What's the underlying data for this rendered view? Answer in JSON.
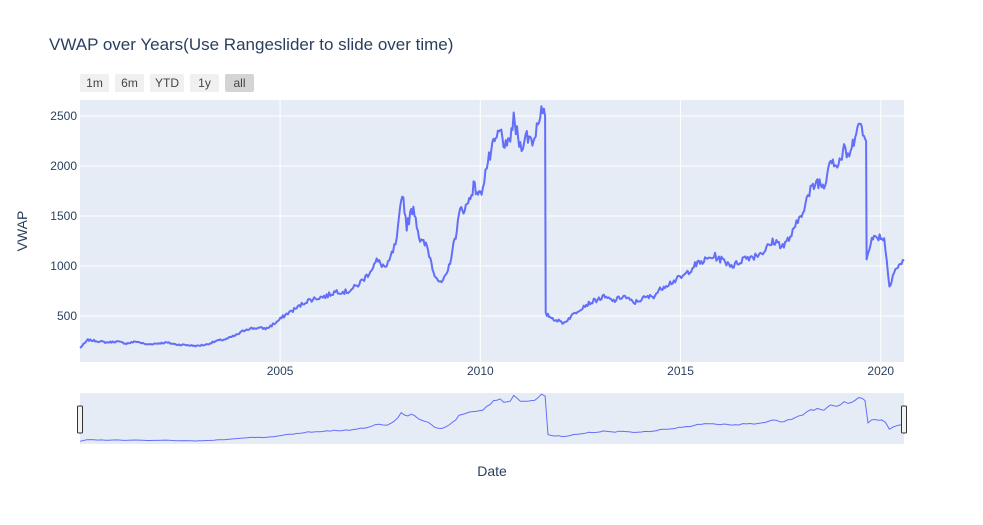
{
  "chart_data": {
    "type": "line",
    "title": "VWAP over Years(Use Rangeslider to slide over time)",
    "xlabel": "Date",
    "ylabel": "VWAP",
    "x_ticks": [
      "2005",
      "2010",
      "2015",
      "2020"
    ],
    "y_ticks": [
      "500",
      "1000",
      "1500",
      "2000",
      "2500"
    ],
    "xlim": [
      "2000-01-03",
      "2020-07-31"
    ],
    "ylim": [
      40,
      2660
    ],
    "grid": true,
    "rangeslider": true,
    "line_color": "#636efa",
    "plot_bg": "#e5ecf6",
    "range_buttons": [
      {
        "label": "1m",
        "active": false
      },
      {
        "label": "6m",
        "active": false
      },
      {
        "label": "YTD",
        "active": false
      },
      {
        "label": "1y",
        "active": false
      },
      {
        "label": "all",
        "active": true
      }
    ],
    "series": [
      {
        "x": [
          "2000-01-03",
          "2000-03-15",
          "2000-06-01",
          "2000-09-01",
          "2000-12-01",
          "2001-03-01",
          "2001-06-01",
          "2001-09-01",
          "2001-12-01",
          "2002-03-01",
          "2002-06-01",
          "2002-09-01",
          "2002-12-01",
          "2003-03-01",
          "2003-06-01",
          "2003-09-01",
          "2003-12-01",
          "2004-03-01",
          "2004-06-01",
          "2004-09-01",
          "2004-12-01",
          "2005-03-01",
          "2005-06-01",
          "2005-09-01",
          "2005-12-01",
          "2006-03-01",
          "2006-06-01",
          "2006-09-01",
          "2006-12-01",
          "2007-03-01",
          "2007-06-01",
          "2007-09-01",
          "2007-12-01",
          "2008-01-20",
          "2008-03-01",
          "2008-05-01",
          "2008-07-01",
          "2008-09-01",
          "2008-11-01",
          "2009-01-01",
          "2009-03-01",
          "2009-05-01",
          "2009-07-01",
          "2009-09-01",
          "2009-11-01",
          "2010-01-01",
          "2010-03-01",
          "2010-05-01",
          "2010-07-01",
          "2010-09-01",
          "2010-11-01",
          "2011-01-01",
          "2011-03-01",
          "2011-05-01",
          "2011-07-01",
          "2011-08-15",
          "2011-08-20",
          "2011-11-01",
          "2012-02-01",
          "2012-05-01",
          "2012-08-01",
          "2012-11-01",
          "2013-02-01",
          "2013-05-01",
          "2013-08-01",
          "2013-11-01",
          "2014-02-01",
          "2014-05-01",
          "2014-08-01",
          "2014-11-01",
          "2015-02-01",
          "2015-05-01",
          "2015-08-01",
          "2015-11-01",
          "2016-02-01",
          "2016-05-01",
          "2016-08-01",
          "2016-11-01",
          "2017-02-01",
          "2017-05-01",
          "2017-08-01",
          "2017-11-01",
          "2018-02-01",
          "2018-04-01",
          "2018-06-01",
          "2018-08-01",
          "2018-10-01",
          "2018-12-01",
          "2019-02-01",
          "2019-04-01",
          "2019-06-01",
          "2019-08-01",
          "2019-08-20",
          "2019-08-25",
          "2019-10-01",
          "2019-12-01",
          "2020-02-01",
          "2020-03-20",
          "2020-05-01",
          "2020-07-31"
        ],
        "y": [
          180,
          260,
          250,
          235,
          245,
          225,
          245,
          215,
          225,
          235,
          215,
          210,
          200,
          215,
          250,
          270,
          310,
          370,
          380,
          375,
          440,
          520,
          580,
          650,
          680,
          700,
          750,
          740,
          800,
          900,
          1050,
          980,
          1250,
          1750,
          1400,
          1600,
          1250,
          1200,
          950,
          820,
          900,
          1200,
          1550,
          1600,
          1800,
          1700,
          2000,
          2200,
          2350,
          2150,
          2450,
          2200,
          2300,
          2250,
          2550,
          2500,
          520,
          470,
          430,
          520,
          600,
          650,
          690,
          650,
          700,
          630,
          680,
          700,
          800,
          850,
          900,
          1000,
          1050,
          1100,
          1050,
          1000,
          1080,
          1100,
          1150,
          1250,
          1200,
          1350,
          1600,
          1750,
          1850,
          1800,
          2100,
          2000,
          2150,
          2100,
          2450,
          2300,
          2250,
          1100,
          1250,
          1300,
          1280,
          800,
          950,
          1050
        ]
      }
    ]
  }
}
